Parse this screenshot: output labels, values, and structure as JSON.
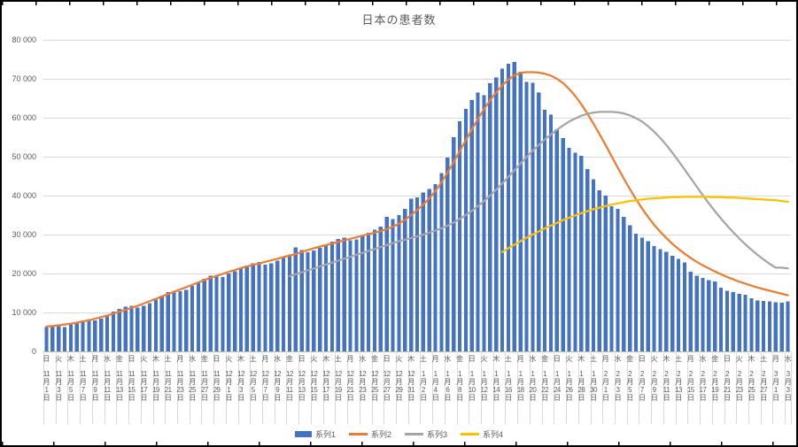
{
  "title": "日本の患者数",
  "colors": {
    "series1": "#4472C4",
    "series2": "#ED7D31",
    "series3": "#A5A5A5",
    "series4": "#FFC000",
    "gridline": "#D9D9D9",
    "axis_line": "#BFBFBF",
    "text": "#595959",
    "frame": "#000000",
    "background": "#FFFFFF"
  },
  "legend": {
    "items": [
      {
        "label": "系列1",
        "type": "bar",
        "color": "#4472C4"
      },
      {
        "label": "系列2",
        "type": "line",
        "color": "#ED7D31"
      },
      {
        "label": "系列3",
        "type": "line",
        "color": "#A5A5A5"
      },
      {
        "label": "系列4",
        "type": "line",
        "color": "#FFC000"
      }
    ]
  },
  "chart_data": {
    "type": "combo",
    "title": "日本の患者数",
    "xlabel": "",
    "ylabel": "",
    "ylim": [
      0,
      80000
    ],
    "y_tick_step": 10000,
    "y_tick_labels": [
      "0",
      "10 000",
      "20 000",
      "30 000",
      "40 000",
      "50 000",
      "60 000",
      "70 000",
      "80 000"
    ],
    "grid": "horizontal",
    "legend_position": "bottom",
    "days": 123,
    "x_start": "11月1日",
    "x_end": "3月3日",
    "x_tick_every_days": 2,
    "month_day_offsets": {
      "11": 0,
      "12": 30,
      "1": 61,
      "2": 92,
      "3": 120
    },
    "x_tick_labels": [
      [
        "日",
        11,
        1
      ],
      [
        "火",
        11,
        3
      ],
      [
        "木",
        11,
        5
      ],
      [
        "土",
        11,
        7
      ],
      [
        "月",
        11,
        9
      ],
      [
        "水",
        11,
        11
      ],
      [
        "金",
        11,
        13
      ],
      [
        "日",
        11,
        15
      ],
      [
        "火",
        11,
        17
      ],
      [
        "木",
        11,
        19
      ],
      [
        "土",
        11,
        21
      ],
      [
        "月",
        11,
        23
      ],
      [
        "水",
        11,
        25
      ],
      [
        "金",
        11,
        27
      ],
      [
        "日",
        11,
        29
      ],
      [
        "火",
        12,
        1
      ],
      [
        "木",
        12,
        3
      ],
      [
        "土",
        12,
        5
      ],
      [
        "月",
        12,
        7
      ],
      [
        "水",
        12,
        9
      ],
      [
        "金",
        12,
        11
      ],
      [
        "日",
        12,
        13
      ],
      [
        "火",
        12,
        15
      ],
      [
        "木",
        12,
        17
      ],
      [
        "土",
        12,
        19
      ],
      [
        "月",
        12,
        21
      ],
      [
        "水",
        12,
        23
      ],
      [
        "金",
        12,
        25
      ],
      [
        "日",
        12,
        27
      ],
      [
        "火",
        12,
        29
      ],
      [
        "木",
        12,
        31
      ],
      [
        "土",
        1,
        2
      ],
      [
        "月",
        1,
        4
      ],
      [
        "水",
        1,
        6
      ],
      [
        "金",
        1,
        8
      ],
      [
        "日",
        1,
        10
      ],
      [
        "火",
        1,
        12
      ],
      [
        "木",
        1,
        14
      ],
      [
        "土",
        1,
        16
      ],
      [
        "月",
        1,
        18
      ],
      [
        "水",
        1,
        20
      ],
      [
        "金",
        1,
        22
      ],
      [
        "日",
        1,
        24
      ],
      [
        "火",
        1,
        26
      ],
      [
        "木",
        1,
        28
      ],
      [
        "土",
        1,
        30
      ],
      [
        "月",
        2,
        1
      ],
      [
        "水",
        2,
        3
      ],
      [
        "金",
        2,
        5
      ],
      [
        "日",
        2,
        7
      ],
      [
        "火",
        2,
        9
      ],
      [
        "木",
        2,
        11
      ],
      [
        "土",
        2,
        13
      ],
      [
        "月",
        2,
        15
      ],
      [
        "水",
        2,
        17
      ],
      [
        "金",
        2,
        19
      ],
      [
        "日",
        2,
        21
      ],
      [
        "火",
        2,
        23
      ],
      [
        "木",
        2,
        25
      ],
      [
        "土",
        2,
        27
      ],
      [
        "月",
        3,
        1
      ],
      [
        "水",
        3,
        3
      ]
    ],
    "series": [
      {
        "name": "系列1",
        "type": "bar",
        "color": "#4472C4",
        "values": [
          6300,
          6200,
          6500,
          6300,
          7000,
          7400,
          8000,
          8300,
          8000,
          8400,
          9300,
          10200,
          10900,
          11500,
          11700,
          11200,
          11700,
          12400,
          13300,
          14300,
          15200,
          15600,
          15500,
          15800,
          16800,
          17700,
          18600,
          19400,
          19600,
          19100,
          20000,
          20600,
          21300,
          22000,
          22600,
          22900,
          22300,
          22600,
          23300,
          24100,
          24900,
          26700,
          26000,
          25400,
          25900,
          26600,
          27400,
          28200,
          28900,
          29200,
          28500,
          28800,
          29600,
          30400,
          31200,
          32000,
          34500,
          34000,
          35000,
          36600,
          39200,
          39600,
          40800,
          41700,
          43000,
          45800,
          49800,
          55000,
          59100,
          62300,
          64600,
          66500,
          65800,
          68900,
          70300,
          72600,
          73900,
          74300,
          71800,
          69200,
          69000,
          66500,
          62100,
          60800,
          57100,
          54800,
          52300,
          51000,
          50200,
          46800,
          44200,
          41400,
          40000,
          37300,
          36600,
          34500,
          32400,
          30200,
          29200,
          28300,
          27100,
          26300,
          25600,
          24500,
          23700,
          22800,
          20400,
          19400,
          18900,
          18300,
          17900,
          16400,
          15600,
          15200,
          14800,
          14500,
          13600,
          13100,
          13000,
          12800,
          12600,
          12500,
          12800
        ]
      },
      {
        "name": "系列2",
        "type": "line",
        "color": "#ED7D31",
        "values": [
          6400,
          6500,
          6700,
          6900,
          7100,
          7400,
          7700,
          8000,
          8400,
          8800,
          9200,
          9700,
          10200,
          10700,
          11200,
          11700,
          12300,
          12900,
          13500,
          14100,
          14700,
          15300,
          15900,
          16500,
          17100,
          17700,
          18300,
          18900,
          19400,
          19900,
          20400,
          20900,
          21400,
          21800,
          22200,
          22600,
          23000,
          23400,
          23800,
          24200,
          24600,
          25000,
          25500,
          26000,
          26500,
          26900,
          27300,
          27700,
          28100,
          28500,
          28900,
          29300,
          29700,
          30100,
          30500,
          30900,
          31400,
          32000,
          32800,
          33800,
          35000,
          36300,
          37700,
          39300,
          41200,
          43400,
          45900,
          48600,
          51400,
          54200,
          57000,
          59700,
          62200,
          64500,
          66500,
          68300,
          69800,
          70900,
          71500,
          71700,
          71700,
          71600,
          71300,
          70800,
          70000,
          68900,
          67400,
          65600,
          63500,
          61100,
          58500,
          55800,
          53000,
          50100,
          47200,
          44400,
          41700,
          39100,
          36700,
          34500,
          32500,
          30700,
          29100,
          27600,
          26300,
          25100,
          24000,
          23000,
          22100,
          21300,
          20500,
          19800,
          19100,
          18500,
          17900,
          17400,
          16900,
          16400,
          16000,
          15600,
          15200,
          14800,
          14400
        ]
      },
      {
        "name": "系列3",
        "type": "line",
        "color": "#A5A5A5",
        "values": [
          null,
          null,
          null,
          null,
          null,
          null,
          null,
          null,
          null,
          null,
          null,
          null,
          null,
          null,
          null,
          null,
          null,
          null,
          null,
          null,
          null,
          null,
          null,
          null,
          null,
          null,
          null,
          null,
          null,
          null,
          null,
          null,
          null,
          null,
          null,
          null,
          null,
          null,
          null,
          null,
          19300,
          19800,
          20300,
          20800,
          21300,
          21800,
          22300,
          22800,
          23300,
          23800,
          24300,
          24800,
          25300,
          25800,
          26300,
          26800,
          27300,
          27800,
          28300,
          28700,
          29100,
          29500,
          30000,
          30500,
          31000,
          31600,
          32300,
          33100,
          34000,
          35000,
          36100,
          37300,
          38600,
          40000,
          41500,
          43100,
          44800,
          46500,
          48200,
          49900,
          51500,
          53000,
          54400,
          55700,
          56900,
          58000,
          59000,
          59800,
          60500,
          61000,
          61300,
          61500,
          61500,
          61500,
          61400,
          61100,
          60600,
          59900,
          59000,
          57800,
          56400,
          54800,
          53000,
          51000,
          48900,
          46700,
          44500,
          42300,
          40100,
          38000,
          36000,
          34100,
          32300,
          30600,
          29000,
          27500,
          26100,
          24800,
          23600,
          22500,
          21500,
          21500,
          21300
        ]
      },
      {
        "name": "系列4",
        "type": "line",
        "color": "#FFC000",
        "values": [
          null,
          null,
          null,
          null,
          null,
          null,
          null,
          null,
          null,
          null,
          null,
          null,
          null,
          null,
          null,
          null,
          null,
          null,
          null,
          null,
          null,
          null,
          null,
          null,
          null,
          null,
          null,
          null,
          null,
          null,
          null,
          null,
          null,
          null,
          null,
          null,
          null,
          null,
          null,
          null,
          null,
          null,
          null,
          null,
          null,
          null,
          null,
          null,
          null,
          null,
          null,
          null,
          null,
          null,
          null,
          null,
          null,
          null,
          null,
          null,
          null,
          null,
          null,
          null,
          null,
          null,
          null,
          null,
          null,
          null,
          null,
          null,
          null,
          null,
          null,
          25500,
          26500,
          27400,
          28300,
          29200,
          30000,
          30800,
          31600,
          32300,
          33000,
          33700,
          34300,
          34900,
          35500,
          36000,
          36500,
          36900,
          37300,
          37700,
          38000,
          38300,
          38600,
          38800,
          39000,
          39200,
          39300,
          39400,
          39500,
          39600,
          39600,
          39700,
          39700,
          39700,
          39700,
          39700,
          39600,
          39600,
          39500,
          39500,
          39400,
          39300,
          39200,
          39100,
          39000,
          38900,
          38800,
          38600,
          38400
        ]
      }
    ]
  }
}
